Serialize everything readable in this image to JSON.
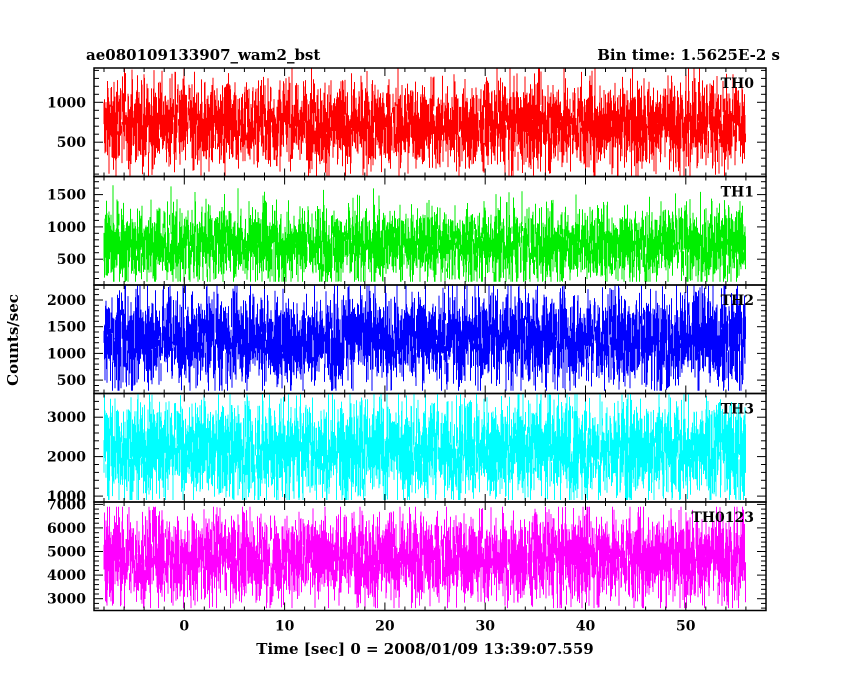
{
  "header": {
    "title": "ae080109133907_wam2_bst",
    "bin_time": "Bin time: 1.5625E-2 s"
  },
  "chart_data": {
    "type": "line",
    "title": "ae080109133907_wam2_bst",
    "subtitle": "Bin time: 1.5625E-2 s",
    "xlabel": "Time [sec] 0 = 2008/01/09 13:39:07.559",
    "ylabel": "Counts/sec",
    "xlim": [
      -9,
      58
    ],
    "x_data_range": [
      -8,
      56
    ],
    "x_ticks": [
      0,
      10,
      20,
      30,
      40,
      50
    ],
    "x_tick_labels": [
      "0",
      "10",
      "20",
      "30",
      "40",
      "50"
    ],
    "bin_time_s": 0.015625,
    "panels": [
      {
        "name": "TH0",
        "color": "#ff0000",
        "ylim": [
          70,
          1430
        ],
        "y_ticks": [
          500,
          1000
        ],
        "y_tick_labels": [
          "500",
          "1000"
        ],
        "mean": 720,
        "typical_low": 280,
        "typical_high": 1100,
        "min": 70,
        "max": 1430
      },
      {
        "name": "TH1",
        "color": "#00ee00",
        "ylim": [
          100,
          1780
        ],
        "y_ticks": [
          500,
          1000,
          1500
        ],
        "y_tick_labels": [
          "500",
          "1000",
          "1500"
        ],
        "mean": 730,
        "typical_low": 300,
        "typical_high": 1180,
        "min": 150,
        "max": 1700
      },
      {
        "name": "TH2",
        "color": "#0000ff",
        "ylim": [
          250,
          2280
        ],
        "y_ticks": [
          500,
          1000,
          1500,
          2000
        ],
        "y_tick_labels": [
          "500",
          "1000",
          "1500",
          "2000"
        ],
        "mean": 1280,
        "typical_low": 620,
        "typical_high": 1950,
        "min": 300,
        "max": 2280
      },
      {
        "name": "TH3",
        "color": "#00ffff",
        "ylim": [
          850,
          3600
        ],
        "y_ticks": [
          1000,
          2000,
          3000
        ],
        "y_tick_labels": [
          "1000",
          "2000",
          "3000"
        ],
        "mean": 2200,
        "typical_low": 1250,
        "typical_high": 3150,
        "min": 900,
        "max": 3600
      },
      {
        "name": "TH0123",
        "color": "#ff00ff",
        "ylim": [
          2500,
          7100
        ],
        "y_ticks": [
          3000,
          4000,
          5000,
          6000,
          7000
        ],
        "y_tick_labels": [
          "3000",
          "4000",
          "5000",
          "6000",
          "7000"
        ],
        "mean": 4750,
        "typical_low": 3300,
        "typical_high": 6150,
        "min": 2600,
        "max": 6900
      }
    ]
  }
}
